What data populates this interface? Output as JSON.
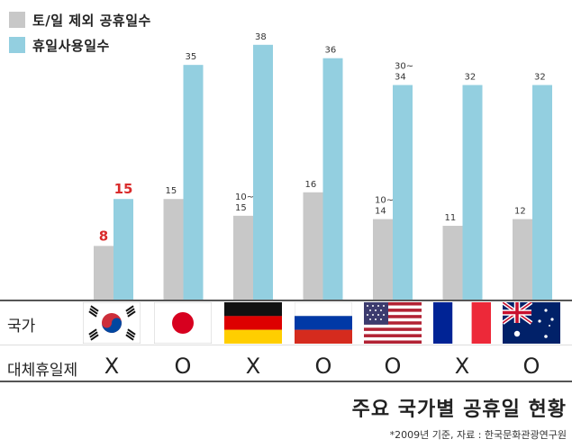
{
  "chart_data": {
    "type": "bar",
    "categories": [
      "한국",
      "일본",
      "독일",
      "러시아",
      "미국",
      "프랑스",
      "호주"
    ],
    "series": [
      {
        "name": "토/일 제외 공휴일수",
        "values": [
          8,
          15,
          12.5,
          16,
          12,
          11,
          12
        ],
        "labels": [
          "8",
          "15",
          "10~\n15",
          "16",
          "10~\n14",
          "11",
          "12"
        ]
      },
      {
        "name": "휴일사용일수",
        "values": [
          15,
          35,
          38,
          36,
          32,
          32,
          32
        ],
        "labels": [
          "15",
          "35",
          "38",
          "36",
          "30~\n34",
          "32",
          "32"
        ]
      }
    ],
    "ylim": [
      0,
      42
    ],
    "grid": false,
    "legend_position": "top-left",
    "colors": {
      "gray": "#c8c8c8",
      "blue": "#93cfe0",
      "highlight_text": "#d92b2b"
    },
    "highlight_category": "한국"
  },
  "table": {
    "row1_label": "국가",
    "row2_label": "대체휴일제",
    "substitute_holiday": [
      "X",
      "O",
      "X",
      "O",
      "O",
      "X",
      "O"
    ]
  },
  "title": "주요 국가별 공휴일 현황",
  "footnote": "*2009년 기준, 자료 : 한국문화관광연구원",
  "flags": [
    "korea-flag-icon",
    "japan-flag-icon",
    "germany-flag-icon",
    "russia-flag-icon",
    "usa-flag-icon",
    "france-flag-icon",
    "australia-flag-icon"
  ]
}
